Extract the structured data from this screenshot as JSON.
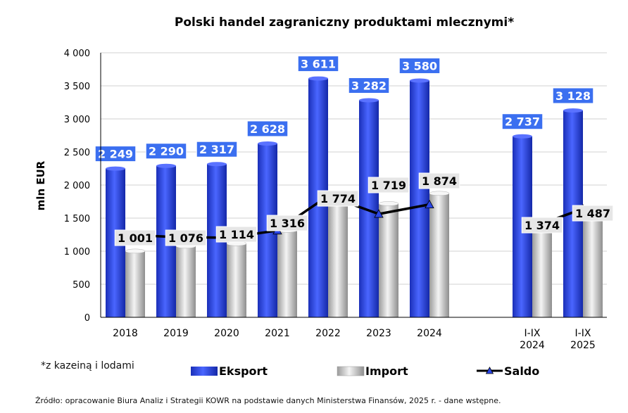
{
  "chart_data": {
    "type": "bar",
    "title": "Polski handel zagraniczny produktami mlecznymi*",
    "ylabel": "mln EUR",
    "xlabel": "",
    "ylim": [
      0,
      4000
    ],
    "yticks": [
      0,
      500,
      1000,
      1500,
      2000,
      2500,
      3000,
      3500,
      4000
    ],
    "ytick_labels": [
      "0",
      "500",
      "1 000",
      "1 500",
      "2 000",
      "2 500",
      "3 000",
      "3 500",
      "4 000"
    ],
    "grid": true,
    "legend_position": "bottom",
    "categories": [
      "2018",
      "2019",
      "2020",
      "2021",
      "2022",
      "2023",
      "2024",
      "I-IX 2024",
      "I-IX 2025"
    ],
    "category_lines": [
      [
        "2018"
      ],
      [
        "2019"
      ],
      [
        "2020"
      ],
      [
        "2021"
      ],
      [
        "2022"
      ],
      [
        "2023"
      ],
      [
        "2024"
      ],
      [
        "I-IX",
        "2024"
      ],
      [
        "I-IX",
        "2025"
      ]
    ],
    "series": [
      {
        "name": "Eksport",
        "kind": "bar",
        "color": "#2b46e6",
        "values": [
          2249,
          2290,
          2317,
          2628,
          3611,
          3282,
          3580,
          2737,
          3128
        ],
        "labels": [
          "2 249",
          "2 290",
          "2 317",
          "2 628",
          "3 611",
          "3 282",
          "3 580",
          "2 737",
          "3 128"
        ]
      },
      {
        "name": "Import",
        "kind": "bar",
        "color": "#d9d9d9",
        "values": [
          1001,
          1076,
          1114,
          1316,
          1774,
          1719,
          1874,
          1374,
          1487
        ],
        "labels": [
          "1 001",
          "1 076",
          "1 114",
          "1 316",
          "1 774",
          "1 719",
          "1 874",
          "1 374",
          "1 487"
        ]
      },
      {
        "name": "Saldo",
        "kind": "line",
        "color": "#000000",
        "marker_color": "#2b46e6",
        "values": [
          1248,
          1214,
          1203,
          1312,
          1837,
          1563,
          1706,
          1363,
          1641
        ]
      }
    ]
  },
  "footnote": "*z kazeiną i lodami",
  "source": "Źródło: opracowanie Biura Analiz i Strategii KOWR na podstawie danych Ministerstwa Finansów, 2025 r. -  dane wstępne."
}
